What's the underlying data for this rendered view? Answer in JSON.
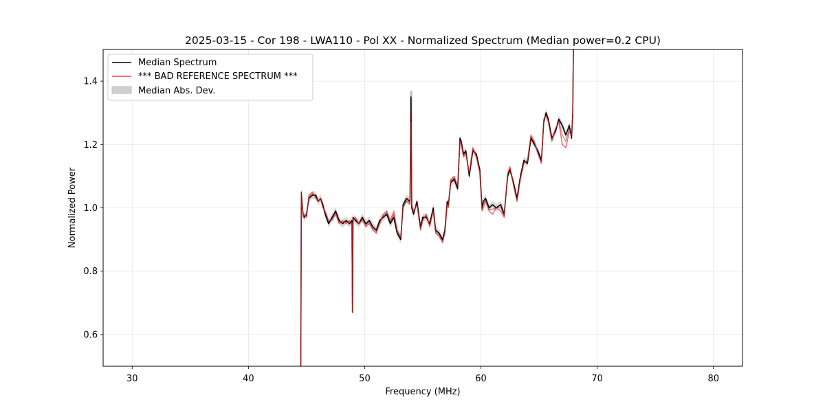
{
  "chart_data": {
    "type": "line",
    "title": "2025-03-15 - Cor 198 - LWA110 - Pol XX - Normalized Spectrum (Median power=0.2 CPU)",
    "xlabel": "Frequency (MHz)",
    "ylabel": "Normalized Power",
    "xlim": [
      27.5,
      82.5
    ],
    "ylim": [
      0.5,
      1.5
    ],
    "xticks": [
      30,
      40,
      50,
      60,
      70,
      80
    ],
    "yticks": [
      0.6,
      0.8,
      1.0,
      1.2,
      1.4
    ],
    "grid": true,
    "legend_position": "top-left",
    "colors": {
      "median": "#000000",
      "reference": "#e8484a",
      "mad": "#bfbfbf",
      "overlap": "#8b0000"
    },
    "legend": [
      "Median Spectrum",
      "*** BAD REFERENCE SPECTRUM ***",
      "Median Abs. Dev."
    ],
    "series": [
      {
        "name": "Median Spectrum",
        "x": [
          44.5,
          44.55,
          44.6,
          44.7,
          44.8,
          45.0,
          45.2,
          45.5,
          45.8,
          46.0,
          46.2,
          46.4,
          46.6,
          46.9,
          47.2,
          47.5,
          47.8,
          48.1,
          48.4,
          48.7,
          48.9,
          48.95,
          49.0,
          49.2,
          49.5,
          49.8,
          50.1,
          50.4,
          50.7,
          51.0,
          51.3,
          51.6,
          51.9,
          52.2,
          52.5,
          52.8,
          53.1,
          53.3,
          53.6,
          53.9,
          53.98,
          54.0,
          54.05,
          54.2,
          54.5,
          54.8,
          55.0,
          55.3,
          55.6,
          55.9,
          56.1,
          56.4,
          56.7,
          56.9,
          57.1,
          57.2,
          57.4,
          57.7,
          58.0,
          58.2,
          58.3,
          58.5,
          58.7,
          59.0,
          59.3,
          59.6,
          59.9,
          60.1,
          60.2,
          60.4,
          60.7,
          61.0,
          61.3,
          61.7,
          62.0,
          62.3,
          62.5,
          62.8,
          63.1,
          63.4,
          63.7,
          64.0,
          64.3,
          64.6,
          64.9,
          65.2,
          65.4,
          65.6,
          65.8,
          66.1,
          66.4,
          66.7,
          67.0,
          67.3,
          67.6,
          67.8,
          67.9,
          67.95,
          68.0
        ],
        "values": [
          0.5,
          1.05,
          1.02,
          0.98,
          0.97,
          0.98,
          1.03,
          1.04,
          1.04,
          1.02,
          1.03,
          1.01,
          0.98,
          0.95,
          0.97,
          0.99,
          0.96,
          0.95,
          0.96,
          0.95,
          0.96,
          0.67,
          0.97,
          0.96,
          0.95,
          0.97,
          0.95,
          0.96,
          0.94,
          0.93,
          0.96,
          0.97,
          0.98,
          0.95,
          0.97,
          0.92,
          0.9,
          1.01,
          1.03,
          1.02,
          1.35,
          1.26,
          1.0,
          0.98,
          1.02,
          0.94,
          0.97,
          0.97,
          0.95,
          1.0,
          0.93,
          0.92,
          0.9,
          0.93,
          1.02,
          1.01,
          1.08,
          1.09,
          1.06,
          1.22,
          1.21,
          1.17,
          1.18,
          1.1,
          1.18,
          1.17,
          1.12,
          1.0,
          1.02,
          1.03,
          1.0,
          1.01,
          1.0,
          1.01,
          0.98,
          1.1,
          1.12,
          1.08,
          1.03,
          1.1,
          1.15,
          1.14,
          1.22,
          1.2,
          1.18,
          1.15,
          1.27,
          1.3,
          1.28,
          1.22,
          1.24,
          1.28,
          1.26,
          1.23,
          1.26,
          1.22,
          1.3,
          1.5,
          1.5
        ]
      },
      {
        "name": "*** BAD REFERENCE SPECTRUM ***",
        "x": [
          44.5,
          44.55,
          44.6,
          44.7,
          44.8,
          45.0,
          45.2,
          45.5,
          45.8,
          46.0,
          46.2,
          46.4,
          46.6,
          46.9,
          47.2,
          47.5,
          47.8,
          48.1,
          48.4,
          48.7,
          48.9,
          48.95,
          49.0,
          49.2,
          49.5,
          49.8,
          50.1,
          50.4,
          50.7,
          51.0,
          51.3,
          51.6,
          51.9,
          52.2,
          52.5,
          52.8,
          53.1,
          53.3,
          53.6,
          53.9,
          53.98,
          54.0,
          54.05,
          54.2,
          54.5,
          54.8,
          55.0,
          55.3,
          55.6,
          55.9,
          56.1,
          56.4,
          56.7,
          56.9,
          57.1,
          57.2,
          57.4,
          57.7,
          58.0,
          58.2,
          58.3,
          58.5,
          58.7,
          59.0,
          59.3,
          59.6,
          59.9,
          60.1,
          60.2,
          60.4,
          60.7,
          61.0,
          61.3,
          61.7,
          62.0,
          62.3,
          62.5,
          62.8,
          63.1,
          63.4,
          63.7,
          64.0,
          64.3,
          64.6,
          64.9,
          65.2,
          65.4,
          65.6,
          65.8,
          66.1,
          66.4,
          66.7,
          67.0,
          67.3,
          67.6,
          67.8,
          67.9,
          67.95,
          68.0
        ],
        "values": [
          0.5,
          1.05,
          1.03,
          0.97,
          0.98,
          0.97,
          1.04,
          1.05,
          1.03,
          1.02,
          1.03,
          1.0,
          0.99,
          0.96,
          0.96,
          0.98,
          0.95,
          0.96,
          0.95,
          0.96,
          0.95,
          0.67,
          0.96,
          0.97,
          0.95,
          0.96,
          0.94,
          0.95,
          0.93,
          0.92,
          0.95,
          0.98,
          0.99,
          0.96,
          0.99,
          0.93,
          0.91,
          1.0,
          1.02,
          1.01,
          1.27,
          1.25,
          1.01,
          0.99,
          1.01,
          0.93,
          0.96,
          0.98,
          0.94,
          0.99,
          0.92,
          0.91,
          0.89,
          0.92,
          1.01,
          1.0,
          1.09,
          1.1,
          1.07,
          1.21,
          1.2,
          1.16,
          1.17,
          1.11,
          1.19,
          1.16,
          1.11,
          0.99,
          1.0,
          1.02,
          0.99,
          0.98,
          1.0,
          0.99,
          0.97,
          1.11,
          1.13,
          1.07,
          1.02,
          1.09,
          1.14,
          1.15,
          1.23,
          1.21,
          1.17,
          1.14,
          1.28,
          1.29,
          1.27,
          1.21,
          1.25,
          1.27,
          1.2,
          1.19,
          1.24,
          1.23,
          1.29,
          1.5,
          1.5
        ]
      }
    ],
    "mad_band_halfwidth": 0.012,
    "mad_peak": {
      "x": 54.0,
      "value": 1.37
    }
  }
}
